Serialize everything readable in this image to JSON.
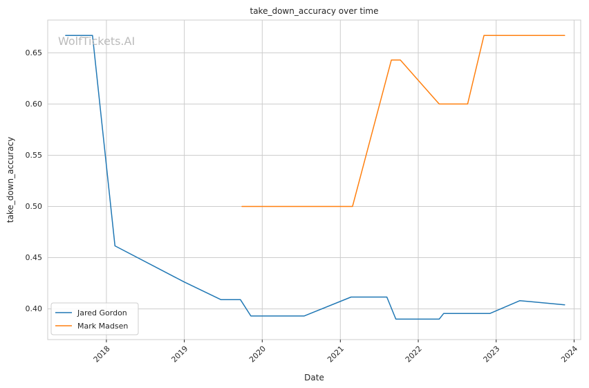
{
  "chart_data": {
    "type": "line",
    "title": "take_down_accuracy over time",
    "xlabel": "Date",
    "ylabel": "take_down_accuracy",
    "watermark": "WolfTickets.AI",
    "xlim": [
      "2017-04-01",
      "2024-02-01"
    ],
    "ylim": [
      0.37,
      0.682
    ],
    "x_ticks": [
      "2018-01-01",
      "2019-01-01",
      "2020-01-01",
      "2021-01-01",
      "2022-01-01",
      "2023-01-01",
      "2024-01-01"
    ],
    "x_tick_labels": [
      "2018",
      "2019",
      "2020",
      "2021",
      "2022",
      "2023",
      "2024"
    ],
    "y_ticks": [
      0.4,
      0.45,
      0.5,
      0.55,
      0.6,
      0.65
    ],
    "y_tick_labels": [
      "0.40",
      "0.45",
      "0.50",
      "0.55",
      "0.60",
      "0.65"
    ],
    "grid": true,
    "legend_position": "lower-left",
    "series": [
      {
        "name": "Jared Gordon",
        "color": "#1f77b4",
        "points": [
          [
            "2017-06-24",
            0.667
          ],
          [
            "2017-10-28",
            0.667
          ],
          [
            "2018-02-10",
            0.4615
          ],
          [
            "2018-12-29",
            0.4265
          ],
          [
            "2019-06-22",
            0.409
          ],
          [
            "2019-09-21",
            0.409
          ],
          [
            "2019-11-09",
            0.393
          ],
          [
            "2020-07-15",
            0.393
          ],
          [
            "2021-02-20",
            0.4115
          ],
          [
            "2021-08-07",
            0.4115
          ],
          [
            "2021-09-18",
            0.39
          ],
          [
            "2022-04-09",
            0.39
          ],
          [
            "2022-04-30",
            0.3955
          ],
          [
            "2022-12-03",
            0.3955
          ],
          [
            "2023-04-22",
            0.408
          ],
          [
            "2023-11-18",
            0.404
          ]
        ]
      },
      {
        "name": "Mark Madsen",
        "color": "#ff7f0e",
        "points": [
          [
            "2019-09-28",
            0.5
          ],
          [
            "2021-02-27",
            0.5
          ],
          [
            "2021-08-28",
            0.643
          ],
          [
            "2021-10-09",
            0.643
          ],
          [
            "2022-04-09",
            0.6
          ],
          [
            "2022-08-20",
            0.6
          ],
          [
            "2022-11-05",
            0.667
          ],
          [
            "2023-11-18",
            0.667
          ]
        ]
      }
    ]
  }
}
